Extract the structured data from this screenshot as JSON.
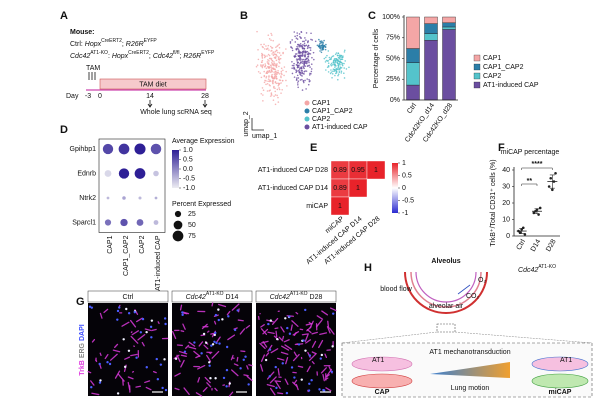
{
  "panels": {
    "A": {
      "letter": "A",
      "heading": "Mouse:",
      "ctrl": [
        "Ctrl: ",
        "Hopx",
        "CreERT2",
        "; ",
        "R26R",
        "EYFP"
      ],
      "ko": [
        "Cdc42",
        "AT1-KO",
        ": ",
        "Hopx",
        "CreERT2",
        "; ",
        "Cdc42",
        "fl/fl",
        "; ",
        "R26R",
        "EYFP"
      ],
      "tam": "TAM",
      "diet": "TAM diet",
      "day_label": "Day",
      "days": [
        "-3",
        "0",
        "14",
        "28"
      ],
      "seq": "Whole lung scRNA seq"
    },
    "B": {
      "letter": "B",
      "x_label": "umap_1",
      "y_label": "umap_2",
      "legend": [
        {
          "name": "CAP1",
          "color": "#f4a6a6"
        },
        {
          "name": "CAP1_CAP2",
          "color": "#2b7ea8"
        },
        {
          "name": "CAP2",
          "color": "#54c3cb"
        },
        {
          "name": "AT1-induced CAP",
          "color": "#6b4ea0"
        }
      ]
    },
    "C": {
      "letter": "C"
    },
    "D": {
      "letter": "D"
    },
    "E": {
      "letter": "E"
    },
    "F": {
      "letter": "F"
    },
    "G": {
      "letter": "G",
      "stain": [
        "TrkB",
        "ERG",
        "DAPI"
      ],
      "titles": [
        [
          "Ctrl"
        ],
        [
          "Cdc42",
          "AT1-KO",
          " D14"
        ],
        [
          "Cdc42",
          "AT1-KO",
          " D28"
        ]
      ]
    },
    "H": {
      "letter": "H",
      "title": "Alveolus",
      "blood": "blood flow",
      "co2": "CO₂",
      "o2": "O₂",
      "air": "alveolar air",
      "mech": "AT1 mechanotransduction",
      "at1_left": "AT1",
      "at1_right": "AT1",
      "motion": "Lung motion",
      "cap": "CAP",
      "micap": "miCAP"
    }
  },
  "chart_data": [
    {
      "type": "bar",
      "stacked": true,
      "y_label": "Percentage of cells",
      "categories": [
        "Ctrl",
        "Cdc42KO_d14",
        "Cdc42KO_d28"
      ],
      "series": [
        {
          "name": "CAP1",
          "color": "#f4a6a6",
          "values": [
            38,
            8,
            7
          ]
        },
        {
          "name": "CAP1_CAP2",
          "color": "#2b7ea8",
          "values": [
            17,
            12,
            5
          ]
        },
        {
          "name": "CAP2",
          "color": "#54c3cb",
          "values": [
            27,
            8,
            3
          ]
        },
        {
          "name": "AT1-induced CAP",
          "color": "#6b4ea0",
          "values": [
            18,
            72,
            85
          ]
        }
      ],
      "ylim": [
        0,
        100
      ],
      "yticks": [
        {
          "value": 0,
          "label": "0%"
        },
        {
          "value": 25,
          "label": "25%"
        },
        {
          "value": 50,
          "label": "50%"
        },
        {
          "value": 75,
          "label": "75%"
        },
        {
          "value": 100,
          "label": "100%"
        }
      ]
    },
    {
      "type": "dot",
      "genes": [
        "Gpihbp1",
        "Ednrb",
        "Ntrk2",
        "Sparcl1"
      ],
      "categories": [
        "CAP1",
        "CAP1_CAP2",
        "CAP2",
        "AT1-induced CAP"
      ],
      "expression": [
        [
          0.6,
          0.8,
          1.0,
          0.5
        ],
        [
          -0.8,
          1.0,
          1.1,
          -0.6
        ],
        [
          -0.5,
          -0.3,
          -0.5,
          -0.4
        ],
        [
          0.2,
          0.5,
          0.3,
          -0.5
        ]
      ],
      "percent": [
        [
          70,
          75,
          80,
          72
        ],
        [
          30,
          70,
          75,
          20
        ],
        [
          5,
          8,
          6,
          5
        ],
        [
          25,
          35,
          30,
          15
        ]
      ],
      "color_label": "Average Expression",
      "color_lim": [
        -1,
        1
      ],
      "color_ticks": [
        {
          "value": 1,
          "label": "1.0"
        },
        0.5,
        {
          "value": 0,
          "label": "0.0"
        },
        -0.5,
        {
          "value": -1,
          "label": "-1.0"
        }
      ],
      "colors": [
        "#ececf2",
        "#2e1f96"
      ],
      "size_label": "Percent Expressed",
      "size_ticks": [
        25,
        50,
        75
      ]
    },
    {
      "type": "heatmap",
      "rows": [
        "AT1-induced CAP D28",
        "AT1-induced CAP D14",
        "miCAP"
      ],
      "columns": [
        "miCAP",
        "AT1-induced CAP D14",
        "AT1-induced CAP D28"
      ],
      "values": [
        [
          0.89,
          0.95,
          1
        ],
        [
          0.89,
          1,
          null
        ],
        [
          1,
          null,
          null
        ]
      ],
      "clim": [
        -1,
        1
      ],
      "cticks": [
        1,
        0.5,
        0,
        -0.5,
        -1
      ],
      "colors": [
        "#2b2bd0",
        "#ffffff",
        "#e8232a"
      ]
    },
    {
      "type": "scatter",
      "title": "miCAP percentage",
      "y_label": "TrkB⁺/Total CD31⁺ cells (%)",
      "x_label": [
        "Cdc42",
        "AT1-KO"
      ],
      "categories": [
        "Ctrl",
        "D14",
        "D28"
      ],
      "points": [
        [
          3,
          2,
          4,
          5,
          1
        ],
        [
          14,
          15,
          16,
          13,
          17
        ],
        [
          30,
          35,
          28,
          33,
          38
        ]
      ],
      "means": [
        3,
        15,
        33
      ],
      "errors": [
        1.5,
        1.5,
        4
      ],
      "ylim": [
        0,
        40
      ],
      "yticks": [
        0,
        10,
        20,
        30,
        40
      ],
      "annotations": [
        "**",
        "****"
      ],
      "color": "#222222"
    }
  ]
}
